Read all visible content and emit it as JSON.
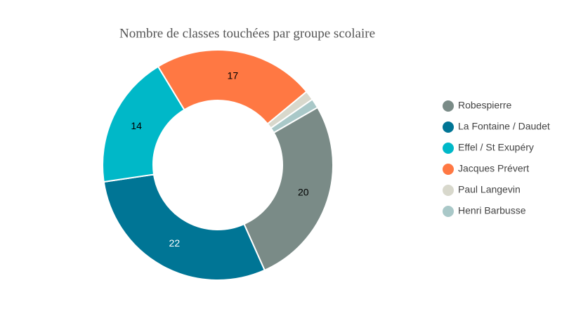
{
  "chart_data": {
    "type": "donut",
    "title": "Nombre de classes touchées par groupe scolaire",
    "categories": [
      "Robespierre",
      "La Fontaine / Daudet",
      "Effel / St Exupéry",
      "Jacques Prévert",
      "Paul Langevin",
      "Henri Barbusse"
    ],
    "values": [
      20,
      22,
      14,
      17,
      1,
      1
    ],
    "colors": [
      "#7a8b87",
      "#007595",
      "#00b8c8",
      "#ff7843",
      "#d8d8cc",
      "#a9c8c8"
    ],
    "legend": "right"
  }
}
